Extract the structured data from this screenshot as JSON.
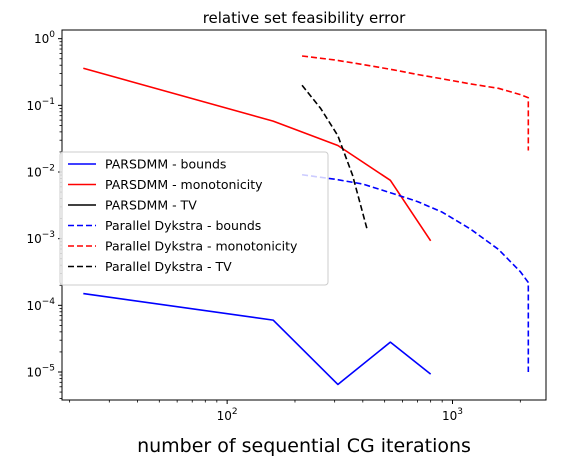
{
  "chart_data": {
    "type": "line",
    "title": "relative set feasibility error",
    "xlabel": "number of sequential CG iterations",
    "ylabel": "",
    "xscale": "log",
    "yscale": "log",
    "xlim": [
      18.5,
      2600
    ],
    "ylim": [
      3.8e-06,
      1.35
    ],
    "grid": false,
    "legend_position": "center-left",
    "x_ticks": [
      {
        "value": 100,
        "base": "10",
        "exp": "2"
      },
      {
        "value": 1000,
        "base": "10",
        "exp": "3"
      }
    ],
    "y_ticks": [
      {
        "value": 1e-05,
        "base": "10",
        "exp": "−5"
      },
      {
        "value": 0.0001,
        "base": "10",
        "exp": "−4"
      },
      {
        "value": 0.001,
        "base": "10",
        "exp": "−3"
      },
      {
        "value": 0.01,
        "base": "10",
        "exp": "−2"
      },
      {
        "value": 0.1,
        "base": "10",
        "exp": "−1"
      },
      {
        "value": 1,
        "base": "10",
        "exp": "0"
      }
    ],
    "series": [
      {
        "name": "PARSDMM - bounds",
        "color": "#0000ff",
        "dash": "solid",
        "points": [
          [
            23,
            0.00015
          ],
          [
            160,
            6e-05
          ],
          [
            310,
            6.5e-06
          ],
          [
            530,
            2.8e-05
          ],
          [
            800,
            9.3e-06
          ]
        ]
      },
      {
        "name": "PARSDMM - monotonicity",
        "color": "#ff0000",
        "dash": "solid",
        "points": [
          [
            23,
            0.36
          ],
          [
            160,
            0.058
          ],
          [
            310,
            0.025
          ],
          [
            530,
            0.0075
          ],
          [
            800,
            0.00093
          ]
        ]
      },
      {
        "name": "PARSDMM - TV",
        "color": "#000000",
        "dash": "solid",
        "points": []
      },
      {
        "name": "Parallel Dykstra - bounds",
        "color": "#0000ff",
        "dash": "dashed",
        "points": [
          [
            215,
            0.0091
          ],
          [
            300,
            0.0078
          ],
          [
            400,
            0.0066
          ],
          [
            550,
            0.0047
          ],
          [
            700,
            0.0036
          ],
          [
            900,
            0.0025
          ],
          [
            1200,
            0.0014
          ],
          [
            1600,
            0.00069
          ],
          [
            2000,
            0.00032
          ],
          [
            2170,
            0.00022
          ],
          [
            2170,
            1e-05
          ]
        ]
      },
      {
        "name": "Parallel Dykstra - monotonicity",
        "color": "#ff0000",
        "dash": "dashed",
        "points": [
          [
            215,
            0.55
          ],
          [
            300,
            0.48
          ],
          [
            400,
            0.41
          ],
          [
            550,
            0.34
          ],
          [
            700,
            0.29
          ],
          [
            900,
            0.25
          ],
          [
            1200,
            0.21
          ],
          [
            1600,
            0.18
          ],
          [
            2000,
            0.145
          ],
          [
            2170,
            0.13
          ],
          [
            2170,
            0.021
          ]
        ]
      },
      {
        "name": "Parallel Dykstra - TV",
        "color": "#000000",
        "dash": "dashed",
        "points": [
          [
            215,
            0.2
          ],
          [
            260,
            0.09
          ],
          [
            310,
            0.035
          ],
          [
            360,
            0.009
          ],
          [
            420,
            0.0013
          ]
        ]
      }
    ]
  }
}
